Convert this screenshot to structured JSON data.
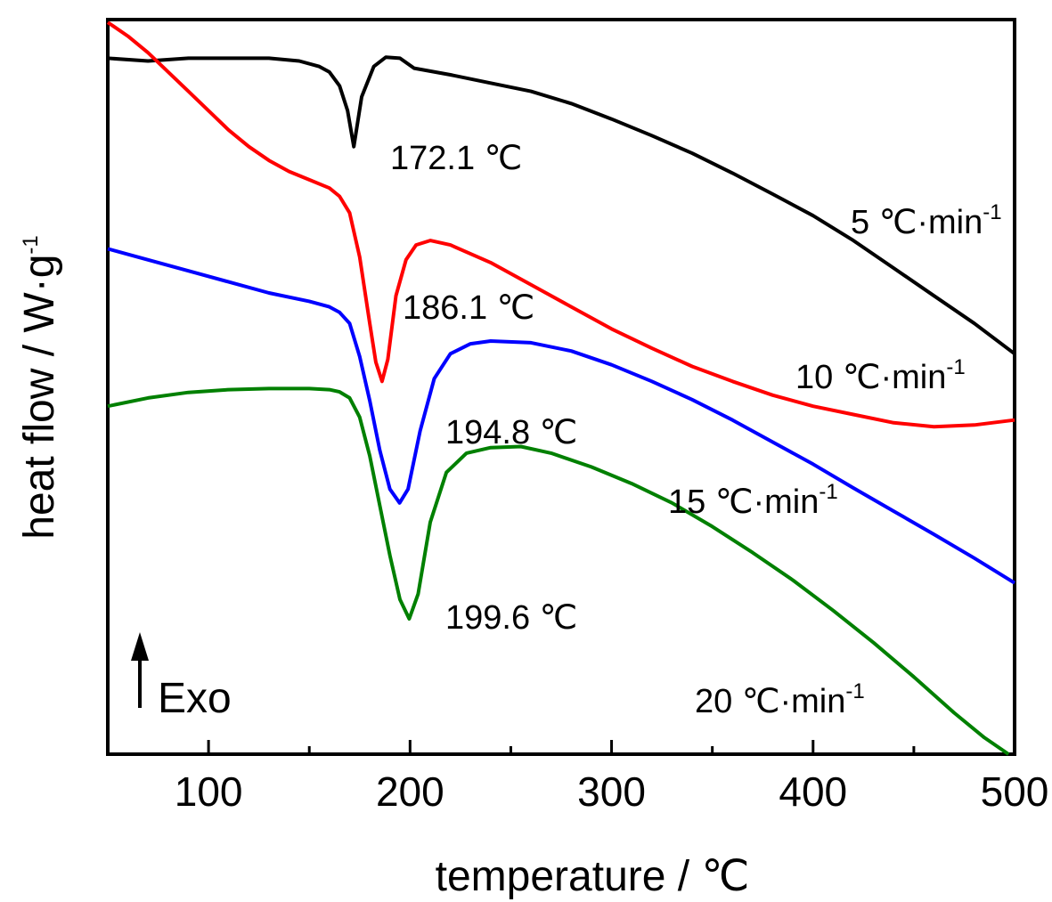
{
  "chart_data": {
    "type": "line",
    "xlabel": "temperature / ℃",
    "ylabel": "heat flow / W·g",
    "ylabel_sup": "-1",
    "xlim": [
      50,
      500
    ],
    "xticks": [
      100,
      200,
      300,
      400,
      500
    ],
    "y_tick_labels": false,
    "exo_label": "Exo",
    "series": [
      {
        "name": "5 ℃·min",
        "name_sup": "-1",
        "color": "#000000",
        "peak_label": "172.1 ℃",
        "points": [
          [
            50,
            0.93
          ],
          [
            70,
            0.925
          ],
          [
            90,
            0.93
          ],
          [
            110,
            0.93
          ],
          [
            130,
            0.93
          ],
          [
            145,
            0.925
          ],
          [
            155,
            0.915
          ],
          [
            160,
            0.905
          ],
          [
            165,
            0.88
          ],
          [
            169,
            0.835
          ],
          [
            172.1,
            0.77
          ],
          [
            176,
            0.86
          ],
          [
            182,
            0.915
          ],
          [
            188,
            0.932
          ],
          [
            195,
            0.93
          ],
          [
            202,
            0.912
          ],
          [
            220,
            0.9
          ],
          [
            240,
            0.885
          ],
          [
            260,
            0.87
          ],
          [
            280,
            0.848
          ],
          [
            300,
            0.82
          ],
          [
            320,
            0.79
          ],
          [
            340,
            0.758
          ],
          [
            360,
            0.722
          ],
          [
            380,
            0.684
          ],
          [
            400,
            0.645
          ],
          [
            420,
            0.6
          ],
          [
            440,
            0.55
          ],
          [
            460,
            0.5
          ],
          [
            480,
            0.45
          ],
          [
            500,
            0.395
          ]
        ]
      },
      {
        "name": "10 ℃·min",
        "name_sup": "-1",
        "color": "#ff0000",
        "peak_label": "186.1 ℃",
        "points": [
          [
            50,
            0.995
          ],
          [
            60,
            0.97
          ],
          [
            70,
            0.94
          ],
          [
            80,
            0.905
          ],
          [
            90,
            0.87
          ],
          [
            100,
            0.835
          ],
          [
            110,
            0.8
          ],
          [
            120,
            0.77
          ],
          [
            130,
            0.745
          ],
          [
            140,
            0.725
          ],
          [
            150,
            0.71
          ],
          [
            160,
            0.695
          ],
          [
            165,
            0.68
          ],
          [
            170,
            0.65
          ],
          [
            175,
            0.57
          ],
          [
            180,
            0.45
          ],
          [
            183,
            0.38
          ],
          [
            186.1,
            0.345
          ],
          [
            189,
            0.385
          ],
          [
            193,
            0.5
          ],
          [
            198,
            0.565
          ],
          [
            203,
            0.592
          ],
          [
            210,
            0.6
          ],
          [
            220,
            0.592
          ],
          [
            240,
            0.56
          ],
          [
            260,
            0.52
          ],
          [
            280,
            0.48
          ],
          [
            300,
            0.44
          ],
          [
            320,
            0.405
          ],
          [
            340,
            0.372
          ],
          [
            360,
            0.345
          ],
          [
            380,
            0.32
          ],
          [
            400,
            0.3
          ],
          [
            420,
            0.285
          ],
          [
            440,
            0.27
          ],
          [
            460,
            0.263
          ],
          [
            480,
            0.266
          ],
          [
            500,
            0.275
          ]
        ]
      },
      {
        "name": "15 ℃·min",
        "name_sup": "-1",
        "color": "#0000ff",
        "peak_label": "194.8 ℃",
        "points": [
          [
            50,
            0.585
          ],
          [
            70,
            0.565
          ],
          [
            90,
            0.545
          ],
          [
            110,
            0.525
          ],
          [
            130,
            0.505
          ],
          [
            150,
            0.49
          ],
          [
            160,
            0.48
          ],
          [
            165,
            0.47
          ],
          [
            170,
            0.45
          ],
          [
            175,
            0.39
          ],
          [
            180,
            0.31
          ],
          [
            185,
            0.22
          ],
          [
            190,
            0.15
          ],
          [
            194.8,
            0.125
          ],
          [
            199,
            0.15
          ],
          [
            205,
            0.255
          ],
          [
            212,
            0.35
          ],
          [
            220,
            0.395
          ],
          [
            230,
            0.413
          ],
          [
            240,
            0.418
          ],
          [
            260,
            0.415
          ],
          [
            280,
            0.4
          ],
          [
            300,
            0.375
          ],
          [
            320,
            0.345
          ],
          [
            340,
            0.312
          ],
          [
            360,
            0.275
          ],
          [
            380,
            0.235
          ],
          [
            400,
            0.195
          ],
          [
            420,
            0.152
          ],
          [
            440,
            0.11
          ],
          [
            460,
            0.068
          ],
          [
            480,
            0.025
          ],
          [
            500,
            -0.02
          ]
        ]
      },
      {
        "name": "20 ℃·min",
        "name_sup": "-1",
        "color": "#008000",
        "peak_label": "199.6 ℃",
        "points": [
          [
            50,
            0.3
          ],
          [
            70,
            0.315
          ],
          [
            90,
            0.325
          ],
          [
            110,
            0.33
          ],
          [
            130,
            0.332
          ],
          [
            150,
            0.332
          ],
          [
            160,
            0.33
          ],
          [
            165,
            0.326
          ],
          [
            170,
            0.315
          ],
          [
            175,
            0.28
          ],
          [
            180,
            0.21
          ],
          [
            185,
            0.12
          ],
          [
            190,
            0.03
          ],
          [
            195,
            -0.05
          ],
          [
            199.6,
            -0.085
          ],
          [
            204,
            -0.04
          ],
          [
            210,
            0.09
          ],
          [
            218,
            0.18
          ],
          [
            228,
            0.215
          ],
          [
            240,
            0.225
          ],
          [
            255,
            0.227
          ],
          [
            270,
            0.215
          ],
          [
            290,
            0.19
          ],
          [
            310,
            0.16
          ],
          [
            330,
            0.125
          ],
          [
            350,
            0.082
          ],
          [
            370,
            0.035
          ],
          [
            390,
            -0.015
          ],
          [
            410,
            -0.07
          ],
          [
            430,
            -0.128
          ],
          [
            450,
            -0.19
          ],
          [
            470,
            -0.255
          ],
          [
            485,
            -0.3
          ],
          [
            497,
            -0.33
          ]
        ]
      }
    ]
  }
}
